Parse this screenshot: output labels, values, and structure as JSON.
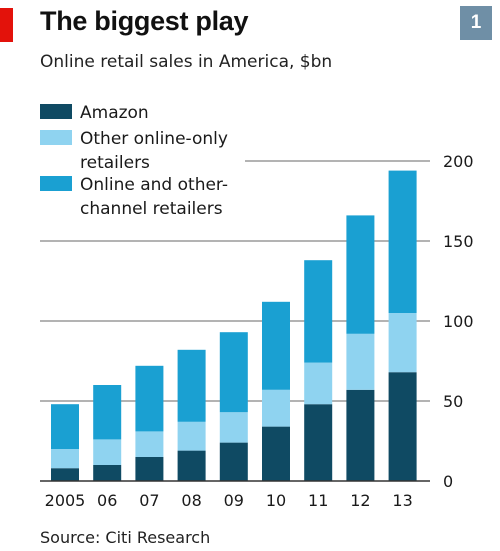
{
  "header": {
    "title": "The biggest play",
    "subtitle": "Online retail sales in America, $bn",
    "badge": "1"
  },
  "footer": {
    "source": "Source: Citi Research"
  },
  "colors": {
    "accent_red": "#e3120b",
    "badge": "#6f8fa6",
    "amazon": "#0f4a63",
    "other_online_only": "#8fd3f0",
    "online_and_other_channel": "#1aa0d2",
    "gridline": "#b3b3b3"
  },
  "chart_data": {
    "type": "bar",
    "stacked": true,
    "title": "The biggest play",
    "subtitle": "Online retail sales in America, $bn",
    "categories": [
      "2005",
      "06",
      "07",
      "08",
      "09",
      "10",
      "11",
      "12",
      "13"
    ],
    "series": [
      {
        "name": "Amazon",
        "values": [
          8,
          10,
          15,
          19,
          24,
          34,
          48,
          57,
          68
        ]
      },
      {
        "name": "Other online-only retailers",
        "values": [
          12,
          16,
          16,
          18,
          19,
          23,
          26,
          35,
          37
        ]
      },
      {
        "name": "Online and other-channel retailers",
        "values": [
          28,
          34,
          41,
          45,
          50,
          55,
          64,
          74,
          89
        ]
      }
    ],
    "legend": [
      [
        "Amazon"
      ],
      [
        "Other online-only",
        "retailers"
      ],
      [
        "Online and other-",
        "channel retailers"
      ]
    ],
    "y_ticks": [
      0,
      50,
      100,
      150,
      200
    ],
    "ylim": [
      0,
      200
    ],
    "grid": true,
    "y_axis_side": "right",
    "legend_position": "top-left"
  }
}
